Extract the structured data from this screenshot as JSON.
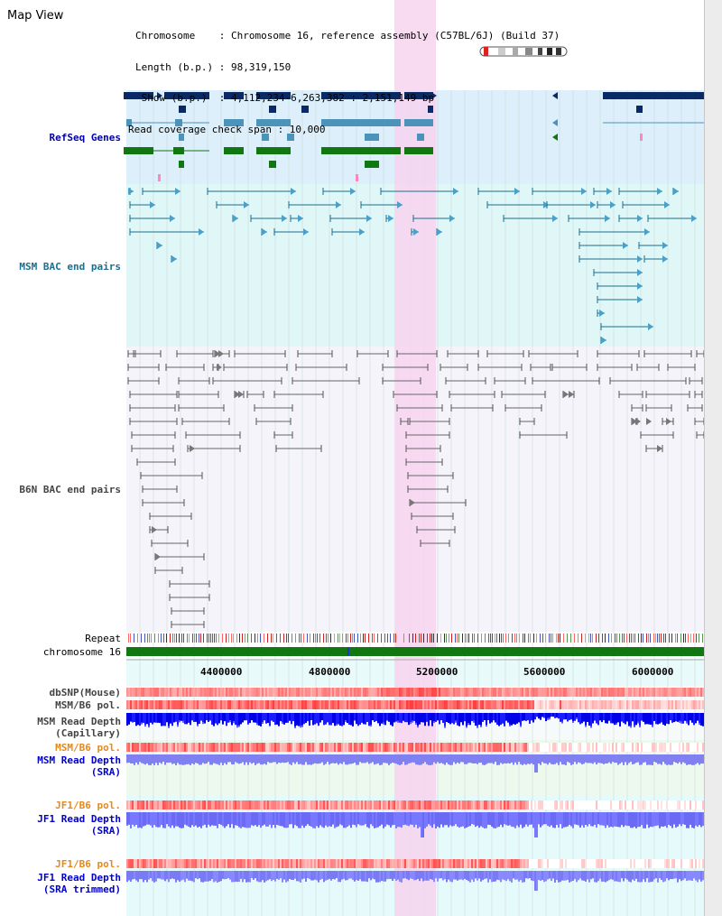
{
  "page": {
    "title": "Map View"
  },
  "info": {
    "rows": [
      "Chromosome    : Chromosome 16, reference assembly (C57BL/6J) (Build 37)",
      "Length (b.p.) : 98,319,150",
      " Show (b.p.)  : 4,112,234-6,263,382 : 2,151,149 bp",
      "Read coverage check span : 10,000"
    ]
  },
  "labels": {
    "refseq": "RefSeq Genes",
    "msm_bac": "MSM BAC end pairs",
    "b6n_bac": "B6N BAC end pairs",
    "repeat": "Repeat",
    "chromosome": "chromosome 16",
    "dbsnp": "dbSNP(Mouse)",
    "msm_b6_pol": "MSM/B6 pol.",
    "msm_read_depth_cap_1": "MSM Read Depth",
    "msm_read_depth_cap_2": "(Capillary)",
    "msm_b6_pol_2": "MSM/B6 pol.",
    "msm_read_depth_sra_1": "MSM Read Depth",
    "msm_read_depth_sra_2": "(SRA)",
    "jf1_b6_pol": "JF1/B6 pol.",
    "jf1_read_depth_sra_1": "JF1 Read Depth",
    "jf1_read_depth_sra_2": "(SRA)",
    "jf1_b6_pol_2": "JF1/B6 pol.",
    "jf1_read_depth_trim_1": "JF1 Read Depth",
    "jf1_read_depth_trim_2": "(SRA trimmed)"
  },
  "axis": {
    "ticks": [
      "4400000",
      "4800000",
      "5200000",
      "5600000",
      "6000000"
    ]
  },
  "colors": {
    "refseq_label": "#0000aa",
    "msm_label": "#1a6e8e",
    "b6n_label": "#444444",
    "pol_label": "#e6891a",
    "depth_label": "#0000cc",
    "highlight": "#f7d3ef",
    "chromosome_bar": "#117711"
  }
}
